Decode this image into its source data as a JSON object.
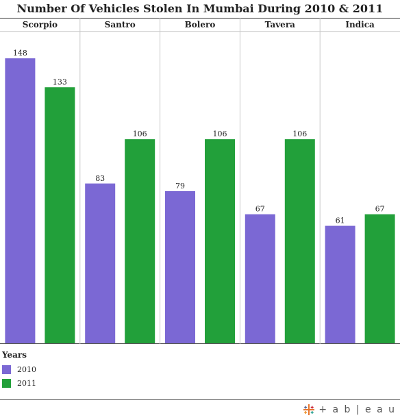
{
  "title": "Number Of Vehicles Stolen In Mumbai During 2010 & 2011",
  "chart_data": {
    "type": "bar",
    "categories": [
      "Scorpio",
      "Santro",
      "Bolero",
      "Tavera",
      "Indica"
    ],
    "series": [
      {
        "name": "2010",
        "values": [
          148,
          83,
          79,
          67,
          61
        ],
        "color": "#7b68d4"
      },
      {
        "name": "2011",
        "values": [
          133,
          106,
          106,
          106,
          67
        ],
        "color": "#22a03a"
      }
    ],
    "ylim": [
      0,
      160
    ],
    "grid": false,
    "legend_position": "bottom-left"
  },
  "legend": {
    "title": "Years",
    "items": [
      {
        "label": "2010",
        "color": "#7b68d4"
      },
      {
        "label": "2011",
        "color": "#22a03a"
      }
    ]
  },
  "logo": {
    "text": "+ a b | e a u"
  }
}
